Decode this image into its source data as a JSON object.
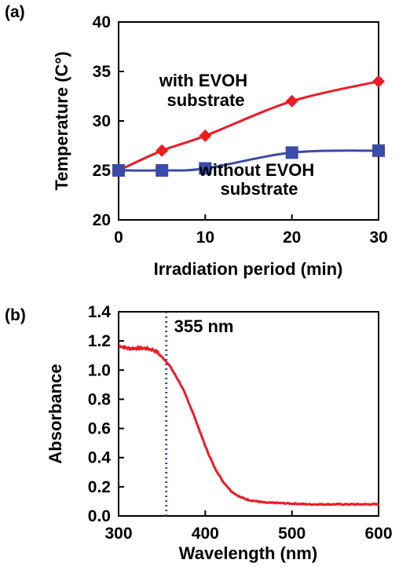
{
  "chart_data": [
    {
      "panel_label": "(a)",
      "type": "line",
      "xlabel": "Irradiation period (min)",
      "ylabel": "Temperature (C°)",
      "xlim": [
        0,
        30
      ],
      "ylim": [
        20,
        40
      ],
      "xticks": [
        0,
        10,
        20,
        30
      ],
      "yticks": [
        20,
        25,
        30,
        35,
        40
      ],
      "grid": false,
      "series": [
        {
          "name": "with EVOH substrate",
          "label_lines": [
            "with EVOH",
            "substrate"
          ],
          "color": "#ec1c24",
          "marker": "diamond",
          "x": [
            0,
            5,
            10,
            20,
            30
          ],
          "y": [
            25.0,
            27.0,
            28.5,
            32.0,
            34.0
          ]
        },
        {
          "name": "without EVOH substrate",
          "label_lines": [
            "without EVOH",
            "substrate"
          ],
          "color": "#3b4ba8",
          "marker": "square",
          "x": [
            0,
            5,
            10,
            20,
            30
          ],
          "y": [
            25.0,
            25.0,
            25.2,
            26.8,
            27.0
          ]
        }
      ]
    },
    {
      "panel_label": "(b)",
      "type": "line",
      "xlabel": "Wavelength (nm)",
      "ylabel": "Absorbance",
      "xlim": [
        300,
        600
      ],
      "ylim": [
        0.0,
        1.4
      ],
      "xticks": [
        300,
        400,
        500,
        600
      ],
      "yticks": [
        "0.0",
        "0.2",
        "0.4",
        "0.6",
        "0.8",
        "1.0",
        "1.2",
        "1.4"
      ],
      "grid": false,
      "series": [
        {
          "color": "#ec1c24",
          "x": [
            300,
            310,
            320,
            330,
            340,
            345,
            350,
            355,
            360,
            365,
            370,
            375,
            380,
            385,
            390,
            395,
            400,
            405,
            410,
            420,
            430,
            440,
            450,
            460,
            470,
            480,
            500,
            520,
            550,
            580,
            600
          ],
          "y": [
            1.17,
            1.15,
            1.15,
            1.15,
            1.14,
            1.12,
            1.09,
            1.06,
            1.02,
            0.97,
            0.92,
            0.86,
            0.79,
            0.72,
            0.64,
            0.56,
            0.48,
            0.41,
            0.34,
            0.24,
            0.17,
            0.13,
            0.11,
            0.1,
            0.09,
            0.09,
            0.085,
            0.08,
            0.08,
            0.08,
            0.08
          ]
        }
      ],
      "annotation": {
        "x": 355,
        "text": "355 nm",
        "color": "#3b4ba8",
        "style": "dotted vertical line"
      }
    }
  ]
}
